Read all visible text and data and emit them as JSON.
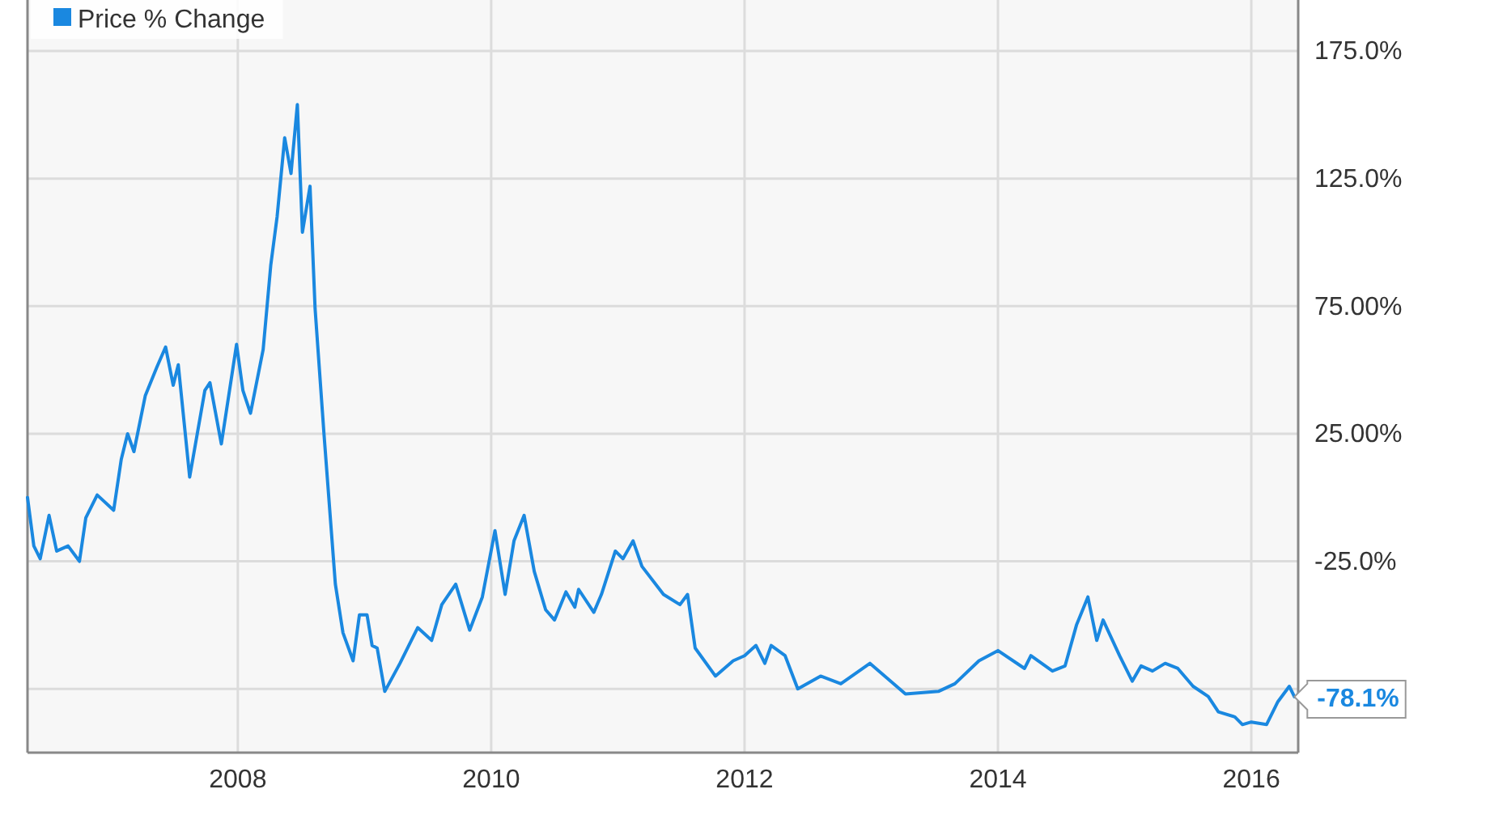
{
  "chart_data": {
    "type": "line",
    "x": [
      2006.34,
      2006.39,
      2006.44,
      2006.51,
      2006.57,
      2006.66,
      2006.75,
      2006.8,
      2006.89,
      2007.02,
      2007.08,
      2007.13,
      2007.18,
      2007.27,
      2007.36,
      2007.43,
      2007.49,
      2007.53,
      2007.62,
      2007.68,
      2007.74,
      2007.78,
      2007.87,
      2007.99,
      2008.04,
      2008.1,
      2008.2,
      2008.26,
      2008.31,
      2008.37,
      2008.42,
      2008.47,
      2008.51,
      2008.57,
      2008.61,
      2008.68,
      2008.77,
      2008.83,
      2008.91,
      2008.96,
      2009.02,
      2009.06,
      2009.1,
      2009.16,
      2009.28,
      2009.42,
      2009.53,
      2009.61,
      2009.72,
      2009.83,
      2009.93,
      2010.03,
      2010.11,
      2010.18,
      2010.26,
      2010.34,
      2010.43,
      2010.5,
      2010.59,
      2010.66,
      2010.69,
      2010.81,
      2010.87,
      2010.98,
      2011.04,
      2011.12,
      2011.19,
      2011.36,
      2011.49,
      2011.55,
      2011.61,
      2011.77,
      2011.91,
      2012.0,
      2012.09,
      2012.16,
      2012.21,
      2012.32,
      2012.42,
      2012.6,
      2012.76,
      2012.99,
      2013.27,
      2013.53,
      2013.66,
      2013.85,
      2014.0,
      2014.21,
      2014.26,
      2014.43,
      2014.53,
      2014.62,
      2014.71,
      2014.78,
      2014.83,
      2014.96,
      2015.06,
      2015.13,
      2015.22,
      2015.32,
      2015.42,
      2015.54,
      2015.66,
      2015.74,
      2015.87,
      2015.93,
      2016.0,
      2016.12,
      2016.21,
      2016.3,
      2016.34
    ],
    "series": [
      {
        "name": "Price % Change",
        "color": "#1a88e0",
        "values": [
          0,
          -19,
          -24,
          -7,
          -21,
          -19,
          -25,
          -8,
          1,
          -5,
          15,
          25,
          18,
          40,
          51,
          59,
          44,
          52,
          8,
          25,
          42,
          45,
          21,
          60,
          42,
          33,
          58,
          91,
          110,
          141,
          127,
          154,
          104,
          122,
          74,
          25,
          -34,
          -53,
          -64,
          -46,
          -46,
          -58,
          -59,
          -76,
          -65,
          -51,
          -56,
          -42,
          -34,
          -52,
          -39,
          -13,
          -38,
          -17,
          -7,
          -29,
          -44,
          -48,
          -37,
          -43,
          -36,
          -45,
          -38,
          -21,
          -24,
          -17,
          -27,
          -38,
          -42,
          -38,
          -59,
          -70,
          -64,
          -62,
          -58,
          -65,
          -58,
          -62,
          -75,
          -70,
          -73,
          -65,
          -77,
          -76,
          -73,
          -64,
          -60,
          -67,
          -62,
          -68,
          -66,
          -50,
          -39,
          -56,
          -48,
          -62,
          -72,
          -66,
          -68,
          -65,
          -67,
          -74,
          -78,
          -84,
          -86,
          -89,
          -88,
          -89,
          -80,
          -74,
          -78.1
        ]
      }
    ],
    "xlim": [
      2006.34,
      2016.37
    ],
    "xticks": [
      2008,
      2010,
      2012,
      2014,
      2016
    ],
    "ylim": [
      -100,
      195
    ],
    "yticks": [
      {
        "value": 175,
        "label": "175.0%"
      },
      {
        "value": 125,
        "label": "125.0%"
      },
      {
        "value": 75,
        "label": "75.00%"
      },
      {
        "value": 25,
        "label": "25.00%"
      },
      {
        "value": -25,
        "label": "-25.0%"
      },
      {
        "value": -75,
        "label": null
      }
    ],
    "annotations": [
      {
        "text": "-78.1%",
        "x": 2016.34,
        "y": -78.1
      }
    ],
    "grid": true,
    "legend": "top left"
  }
}
